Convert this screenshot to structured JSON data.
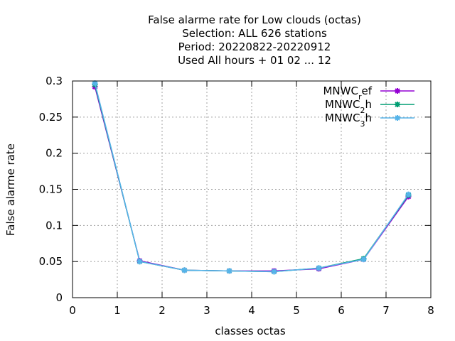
{
  "chart_data": {
    "type": "line",
    "title_lines": [
      "False alarme rate  for Low clouds (octas)",
      "Selection: ALL    626 stations",
      "Period: 20220822-20220912",
      "Used  All hours  + 01 02 ... 12"
    ],
    "xlabel": "classes octas",
    "ylabel": "False alarme rate",
    "xlim": [
      0,
      8
    ],
    "ylim": [
      0,
      0.3
    ],
    "xticks": [
      "0",
      "1",
      "2",
      "3",
      "4",
      "5",
      "6",
      "7",
      "8"
    ],
    "yticks": [
      "0",
      "0.05",
      "0.1",
      "0.15",
      "0.2",
      "0.25",
      "0.3"
    ],
    "grid": true,
    "legend_position": "top-right",
    "x": [
      0.5,
      1.5,
      2.5,
      3.5,
      4.5,
      5.5,
      6.5,
      7.5
    ],
    "series": [
      {
        "name": "MNWC_ref",
        "name_main": "MNWC",
        "name_sub": "r",
        "name_rest": "ef",
        "color": "#9400d3",
        "values": [
          0.292,
          0.051,
          0.038,
          0.037,
          0.037,
          0.04,
          0.053,
          0.14
        ]
      },
      {
        "name": "MNWC_2h",
        "name_main": "MNWC",
        "name_sub": "2",
        "name_rest": "h",
        "color": "#009e73",
        "values": [
          0.295,
          0.05,
          0.038,
          0.037,
          0.036,
          0.041,
          0.054,
          0.142
        ]
      },
      {
        "name": "MNWC_3h",
        "name_main": "MNWC",
        "name_sub": "3",
        "name_rest": "h",
        "color": "#56b4e9",
        "values": [
          0.297,
          0.05,
          0.038,
          0.037,
          0.036,
          0.041,
          0.053,
          0.143
        ]
      }
    ]
  }
}
